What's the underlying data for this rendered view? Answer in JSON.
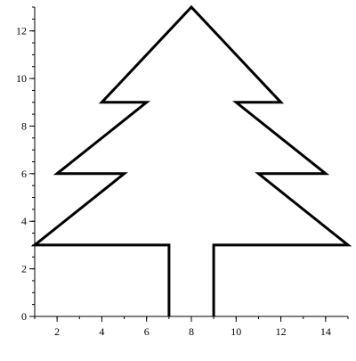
{
  "chart_data": {
    "type": "line",
    "title": "",
    "xlabel": "",
    "ylabel": "",
    "xlim": [
      1,
      15
    ],
    "ylim": [
      0,
      13
    ],
    "grid": false,
    "x_ticks": [
      2,
      4,
      6,
      8,
      10,
      12,
      14
    ],
    "x_tick_labels": [
      "2",
      "4",
      "6",
      "8",
      "10",
      "12",
      "14"
    ],
    "y_ticks": [
      0,
      2,
      4,
      6,
      8,
      10,
      12
    ],
    "y_tick_labels": [
      "0",
      "2",
      "4",
      "6",
      "8",
      "10",
      "12"
    ],
    "series": [
      {
        "points": [
          [
            7,
            0
          ],
          [
            7,
            3
          ],
          [
            1,
            3
          ],
          [
            5,
            6
          ],
          [
            2,
            6
          ],
          [
            6,
            9
          ],
          [
            4,
            9
          ],
          [
            8,
            13
          ],
          [
            12,
            9
          ],
          [
            10,
            9
          ],
          [
            14,
            6
          ],
          [
            11,
            6
          ],
          [
            15,
            3
          ],
          [
            9,
            3
          ],
          [
            9,
            0
          ]
        ],
        "color": "#000000"
      }
    ]
  }
}
